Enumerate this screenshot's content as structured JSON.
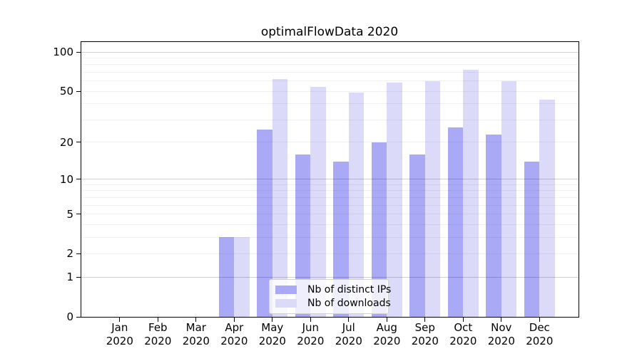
{
  "title": "optimalFlowData 2020",
  "legend": {
    "items": [
      {
        "label": "Nb of distinct IPs",
        "color": "#a9a9f5"
      },
      {
        "label": "Nb of downloads",
        "color": "#dbdbf9"
      }
    ]
  },
  "chart_data": {
    "type": "bar",
    "title": "optimalFlowData 2020",
    "xlabel": "",
    "ylabel": "",
    "yscale": "symlog ln(1+y)",
    "ylim": [
      0,
      118
    ],
    "grid": true,
    "legend_position": "lower-center-inside",
    "categories": [
      "Jan 2020",
      "Feb 2020",
      "Mar 2020",
      "Apr 2020",
      "May 2020",
      "Jun 2020",
      "Jul 2020",
      "Aug 2020",
      "Sep 2020",
      "Oct 2020",
      "Nov 2020",
      "Dec 2020"
    ],
    "series": [
      {
        "name": "Nb of distinct IPs",
        "color": "#a9a9f5",
        "values": [
          0,
          0,
          0,
          3,
          25,
          16,
          14,
          20,
          16,
          26,
          23,
          14
        ]
      },
      {
        "name": "Nb of downloads",
        "color": "#dbdbf9",
        "values": [
          0,
          0,
          0,
          3,
          62,
          54,
          49,
          58,
          60,
          73,
          60,
          43
        ]
      }
    ],
    "ytick_labels": [
      0,
      1,
      2,
      5,
      10,
      20,
      50,
      100
    ],
    "grid_major_values": [
      1,
      10,
      100
    ],
    "grid_minor_values": [
      2,
      3,
      4,
      5,
      6,
      7,
      8,
      9,
      20,
      30,
      40,
      50,
      60,
      70,
      80,
      90
    ],
    "style": {
      "grid_major_color": "rgba(0,0,0,0.18)",
      "grid_minor_color": "rgba(0,0,0,0.055)",
      "spine_color": "#000000",
      "text_color": "#000000"
    }
  }
}
